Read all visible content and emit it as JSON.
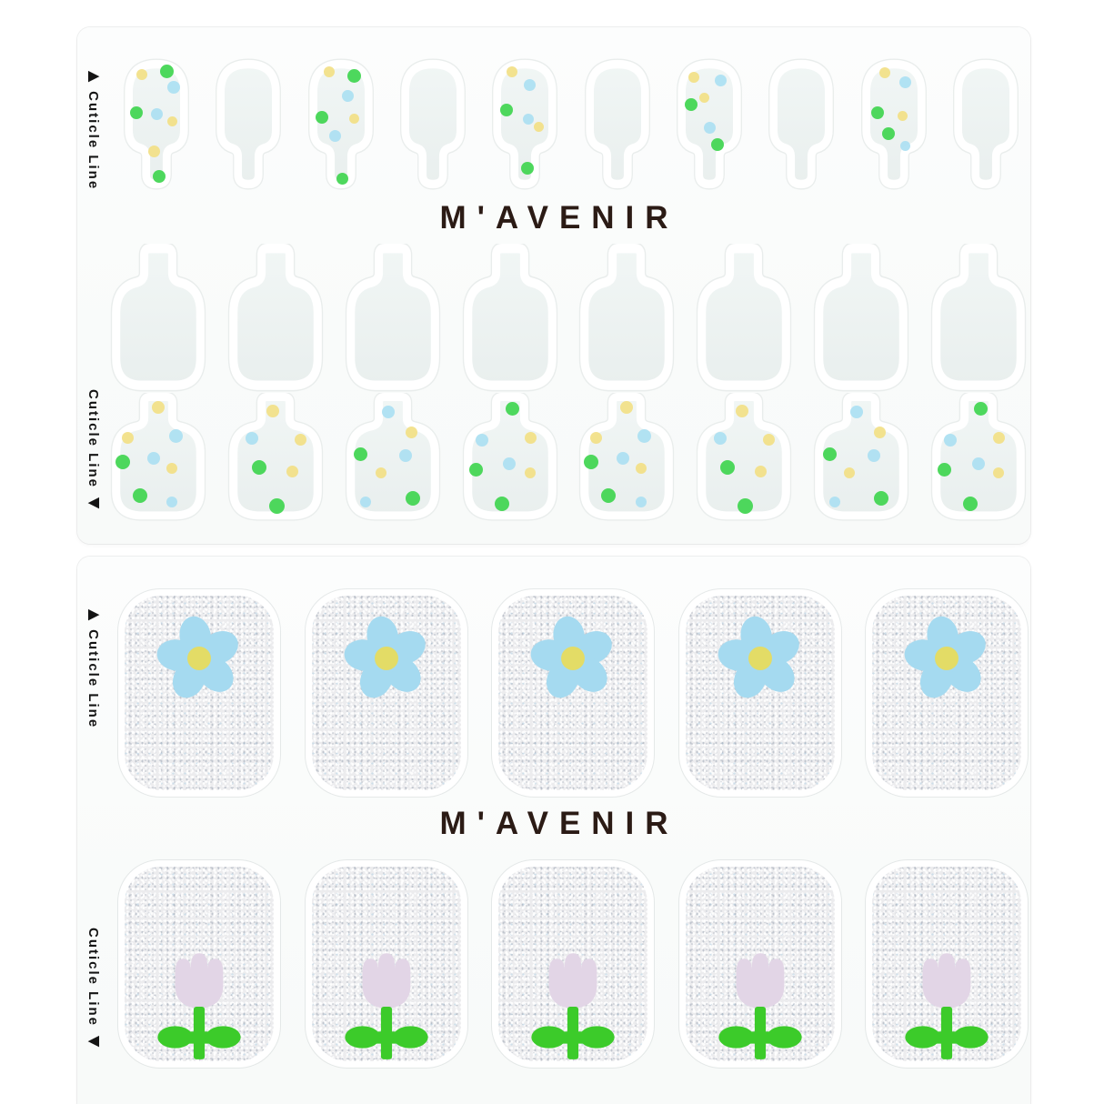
{
  "colors": {
    "background": "#ffffff",
    "sheet": "#fbfcfc",
    "nail_fill": "#edf2f1",
    "nail_halo": "#ffffff",
    "dot_green": "#3fd54f",
    "dot_blue": "#abdff2",
    "dot_yellow": "#f2df85",
    "glitter_base": "#ececee",
    "daisy_petal": "#a5daf0",
    "daisy_center": "#e3dc66",
    "tulip_petal": "#e2d5e6",
    "tulip_green": "#3ccb2a",
    "brand_text": "#2b1b15",
    "label_text": "#141414"
  },
  "top_sheet": {
    "brand_label": "M'AVENIR",
    "cuticle_line_top": "▶ Cuticle Line",
    "cuticle_line_bottom": "Cuticle Line ◀",
    "row1": {
      "nails": [
        "dots",
        "plain",
        "dots",
        "plain",
        "dots",
        "plain",
        "dots",
        "plain",
        "dots",
        "plain"
      ]
    },
    "row2": {
      "nails": [
        "plain",
        "plain",
        "plain",
        "plain",
        "plain",
        "plain",
        "plain",
        "plain"
      ]
    },
    "row3": {
      "nails": [
        "dots",
        "dots",
        "dots",
        "dots",
        "dots",
        "dots",
        "dots",
        "dots"
      ]
    }
  },
  "bottom_sheet": {
    "brand_label": "M'AVENIR",
    "cuticle_line_top": "▶ Cuticle Line",
    "cuticle_line_bottom": "Cuticle Line ◀",
    "flower_row": {
      "nails": [
        "daisy",
        "daisy",
        "daisy",
        "daisy",
        "daisy"
      ]
    },
    "tulip_row": {
      "nails": [
        "tulip",
        "tulip",
        "tulip",
        "tulip",
        "tulip"
      ]
    }
  }
}
